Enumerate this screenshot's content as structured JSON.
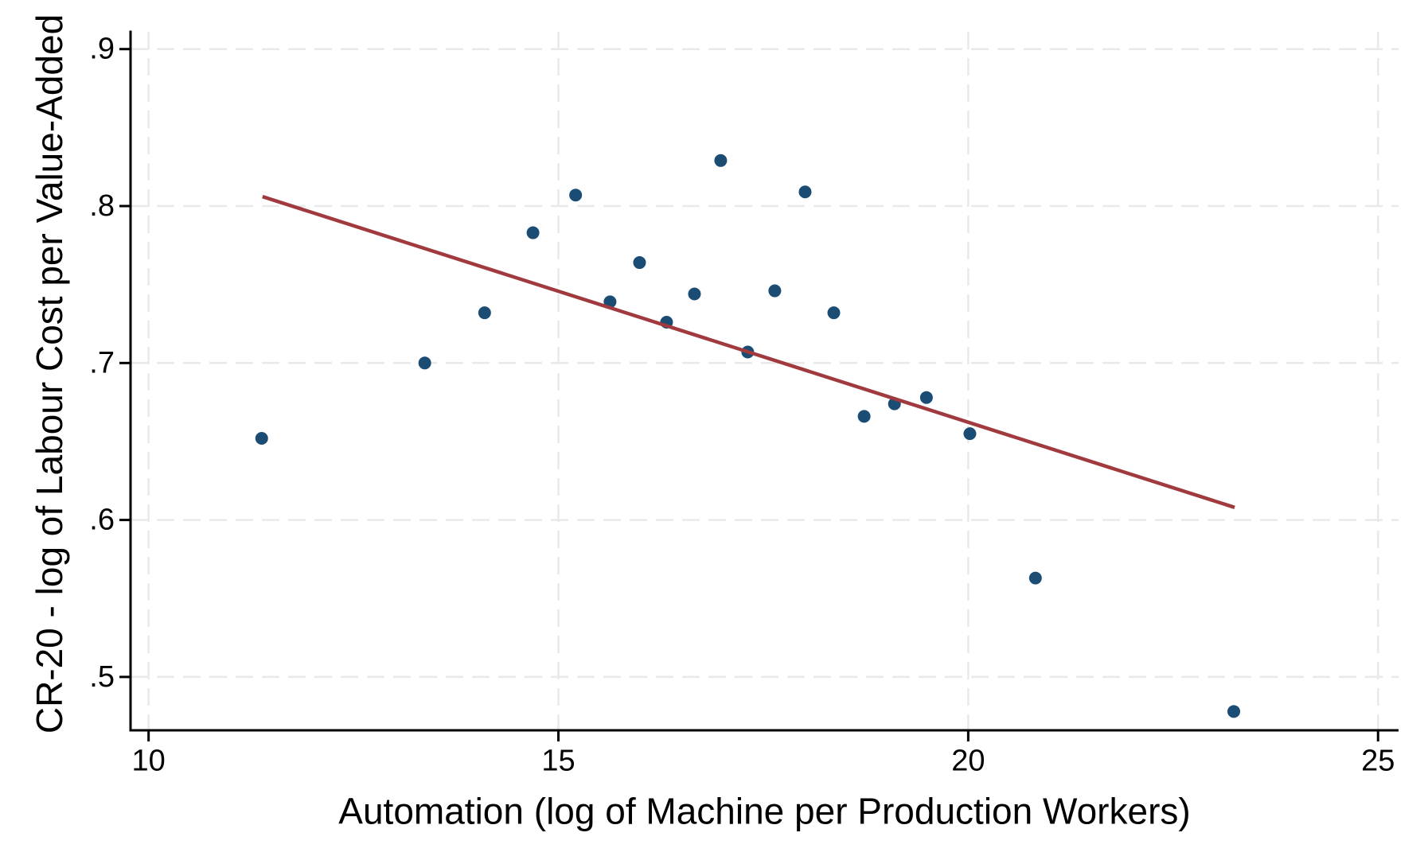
{
  "chart_data": {
    "type": "scatter",
    "title": "",
    "xlabel": "Automation (log of Machine per Production Workers)",
    "ylabel": "CR-20 - log of Labour Cost per Value-Added",
    "xlim": [
      9.78,
      25.25
    ],
    "ylim": [
      0.466,
      0.911
    ],
    "xticks": {
      "values": [
        10,
        15,
        20,
        25
      ],
      "labels": [
        "10",
        "15",
        "20",
        "25"
      ]
    },
    "yticks": {
      "values": [
        0.5,
        0.6,
        0.7,
        0.8,
        0.9
      ],
      "labels": [
        ".5",
        ".6",
        ".7",
        ".8",
        ".9"
      ]
    },
    "grid": {
      "show": true,
      "style": "dashed",
      "axes": "both"
    },
    "legend": {
      "show": false
    },
    "points": [
      [
        11.38,
        0.652
      ],
      [
        13.37,
        0.7
      ],
      [
        14.1,
        0.732
      ],
      [
        14.69,
        0.783
      ],
      [
        15.21,
        0.807
      ],
      [
        15.63,
        0.739
      ],
      [
        15.99,
        0.764
      ],
      [
        16.32,
        0.726
      ],
      [
        16.66,
        0.744
      ],
      [
        16.98,
        0.829
      ],
      [
        17.31,
        0.707
      ],
      [
        17.64,
        0.746
      ],
      [
        18.01,
        0.809
      ],
      [
        18.36,
        0.732
      ],
      [
        18.73,
        0.666
      ],
      [
        19.1,
        0.674
      ],
      [
        19.49,
        0.678
      ],
      [
        20.02,
        0.655
      ],
      [
        20.82,
        0.563
      ],
      [
        23.24,
        0.478
      ]
    ],
    "fit_line": {
      "x1": 11.39,
      "y1": 0.806,
      "x2": 23.25,
      "y2": 0.608
    },
    "colors": {
      "point": "#1B4C74",
      "line": "#A03A3E",
      "grid": "#E9E9E9",
      "axis": "#000000",
      "background": "#FFFFFF"
    }
  }
}
